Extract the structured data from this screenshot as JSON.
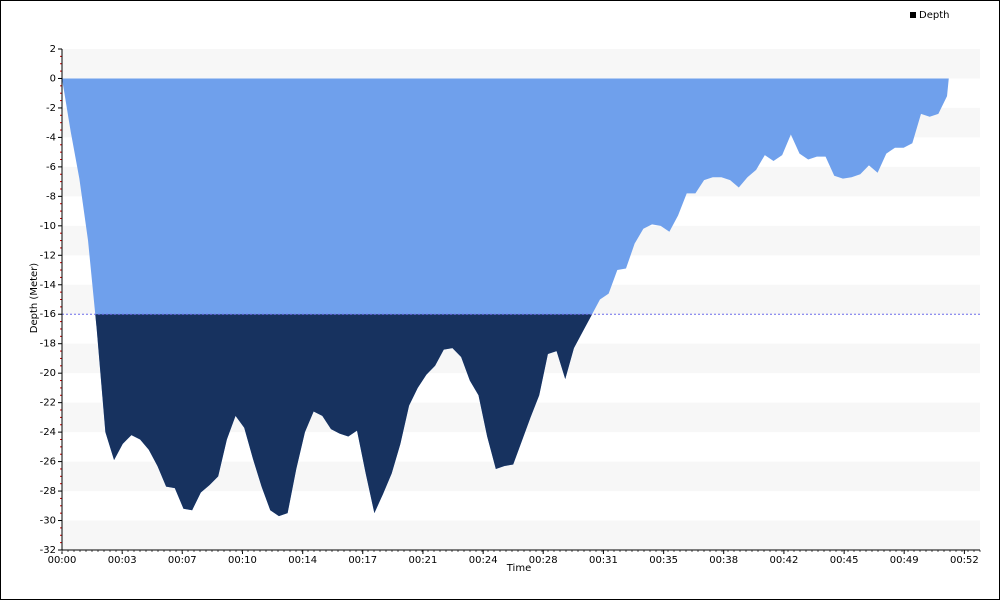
{
  "chart_data": {
    "type": "area",
    "x_label": "Time",
    "y_label": "Depth (Meter)",
    "legend_position": "top-right",
    "threshold": -16,
    "color_above": "#6fa0ec",
    "color_below": "#17325f",
    "threshold_line_color": "#6b6bea",
    "grid": true,
    "xlim": [
      0,
      52.9
    ],
    "ylim": [
      -32,
      2
    ],
    "xticks": [
      {
        "value": 0,
        "label": "00:00"
      },
      {
        "value": 3.47,
        "label": "00:03"
      },
      {
        "value": 6.93,
        "label": "00:07"
      },
      {
        "value": 10.4,
        "label": "00:10"
      },
      {
        "value": 13.87,
        "label": "00:14"
      },
      {
        "value": 17.33,
        "label": "00:17"
      },
      {
        "value": 20.8,
        "label": "00:21"
      },
      {
        "value": 24.27,
        "label": "00:24"
      },
      {
        "value": 27.73,
        "label": "00:28"
      },
      {
        "value": 31.2,
        "label": "00:31"
      },
      {
        "value": 34.67,
        "label": "00:35"
      },
      {
        "value": 38.13,
        "label": "00:38"
      },
      {
        "value": 41.6,
        "label": "00:42"
      },
      {
        "value": 45.07,
        "label": "00:45"
      },
      {
        "value": 48.53,
        "label": "00:49"
      },
      {
        "value": 52,
        "label": "00:52"
      }
    ],
    "yticks": [
      2,
      0,
      -2,
      -4,
      -6,
      -8,
      -10,
      -12,
      -14,
      -16,
      -18,
      -20,
      -22,
      -24,
      -26,
      -28,
      -30,
      -32
    ],
    "x": [
      0,
      0.5,
      1,
      1.5,
      2,
      2.5,
      3,
      3.5,
      4,
      4.5,
      5,
      5.5,
      6,
      6.5,
      7,
      7.5,
      8,
      8.5,
      9,
      9.5,
      10,
      10.5,
      11,
      11.5,
      12,
      12.5,
      13,
      13.5,
      14,
      14.5,
      15,
      15.5,
      16,
      16.5,
      17,
      17.5,
      18,
      18.5,
      19,
      19.5,
      20,
      20.5,
      21,
      21.5,
      22,
      22.5,
      23,
      23.5,
      24,
      24.5,
      25,
      25.5,
      26,
      26.5,
      27,
      27.5,
      28,
      28.5,
      29,
      29.5,
      30,
      30.5,
      31,
      31.5,
      32,
      32.5,
      33,
      33.5,
      34,
      34.5,
      35,
      35.5,
      36,
      36.5,
      37,
      37.5,
      38,
      38.5,
      39,
      39.5,
      40,
      40.5,
      41,
      41.5,
      42,
      42.5,
      43,
      43.5,
      44,
      44.5,
      45,
      45.5,
      46,
      46.5,
      47,
      47.5,
      48,
      48.5,
      49,
      49.5,
      50,
      50.5,
      51,
      51.1
    ],
    "series": [
      {
        "name": "Depth",
        "color": "#17325f",
        "values": [
          0,
          -3.6,
          -6.8,
          -11,
          -17,
          -24,
          -25.9,
          -24.8,
          -24.2,
          -24.5,
          -25.2,
          -26.3,
          -27.7,
          -27.8,
          -29.2,
          -29.3,
          -28.1,
          -27.6,
          -27,
          -24.5,
          -22.9,
          -23.7,
          -25.8,
          -27.7,
          -29.3,
          -29.7,
          -29.5,
          -26.5,
          -24,
          -22.6,
          -22.9,
          -23.8,
          -24.1,
          -24.3,
          -23.9,
          -26.8,
          -29.5,
          -28.2,
          -26.8,
          -24.8,
          -22.2,
          -21,
          -20.1,
          -19.5,
          -18.4,
          -18.3,
          -18.9,
          -20.5,
          -21.5,
          -24.3,
          -26.5,
          -26.3,
          -26.2,
          -24.6,
          -23,
          -21.5,
          -18.7,
          -18.5,
          -20.4,
          -18.3,
          -17.2,
          -16.1,
          -15,
          -14.6,
          -13,
          -12.9,
          -11.2,
          -10.2,
          -9.9,
          -10,
          -10.4,
          -9.3,
          -7.8,
          -7.8,
          -6.9,
          -6.7,
          -6.7,
          -6.9,
          -7.4,
          -6.7,
          -6.2,
          -5.2,
          -5.6,
          -5.2,
          -3.8,
          -5.1,
          -5.5,
          -5.3,
          -5.3,
          -6.6,
          -6.8,
          -6.7,
          -6.5,
          -5.9,
          -6.4,
          -5.1,
          -4.7,
          -4.7,
          -4.4,
          -2.4,
          -2.6,
          -2.4,
          -1.2,
          0
        ]
      }
    ]
  }
}
